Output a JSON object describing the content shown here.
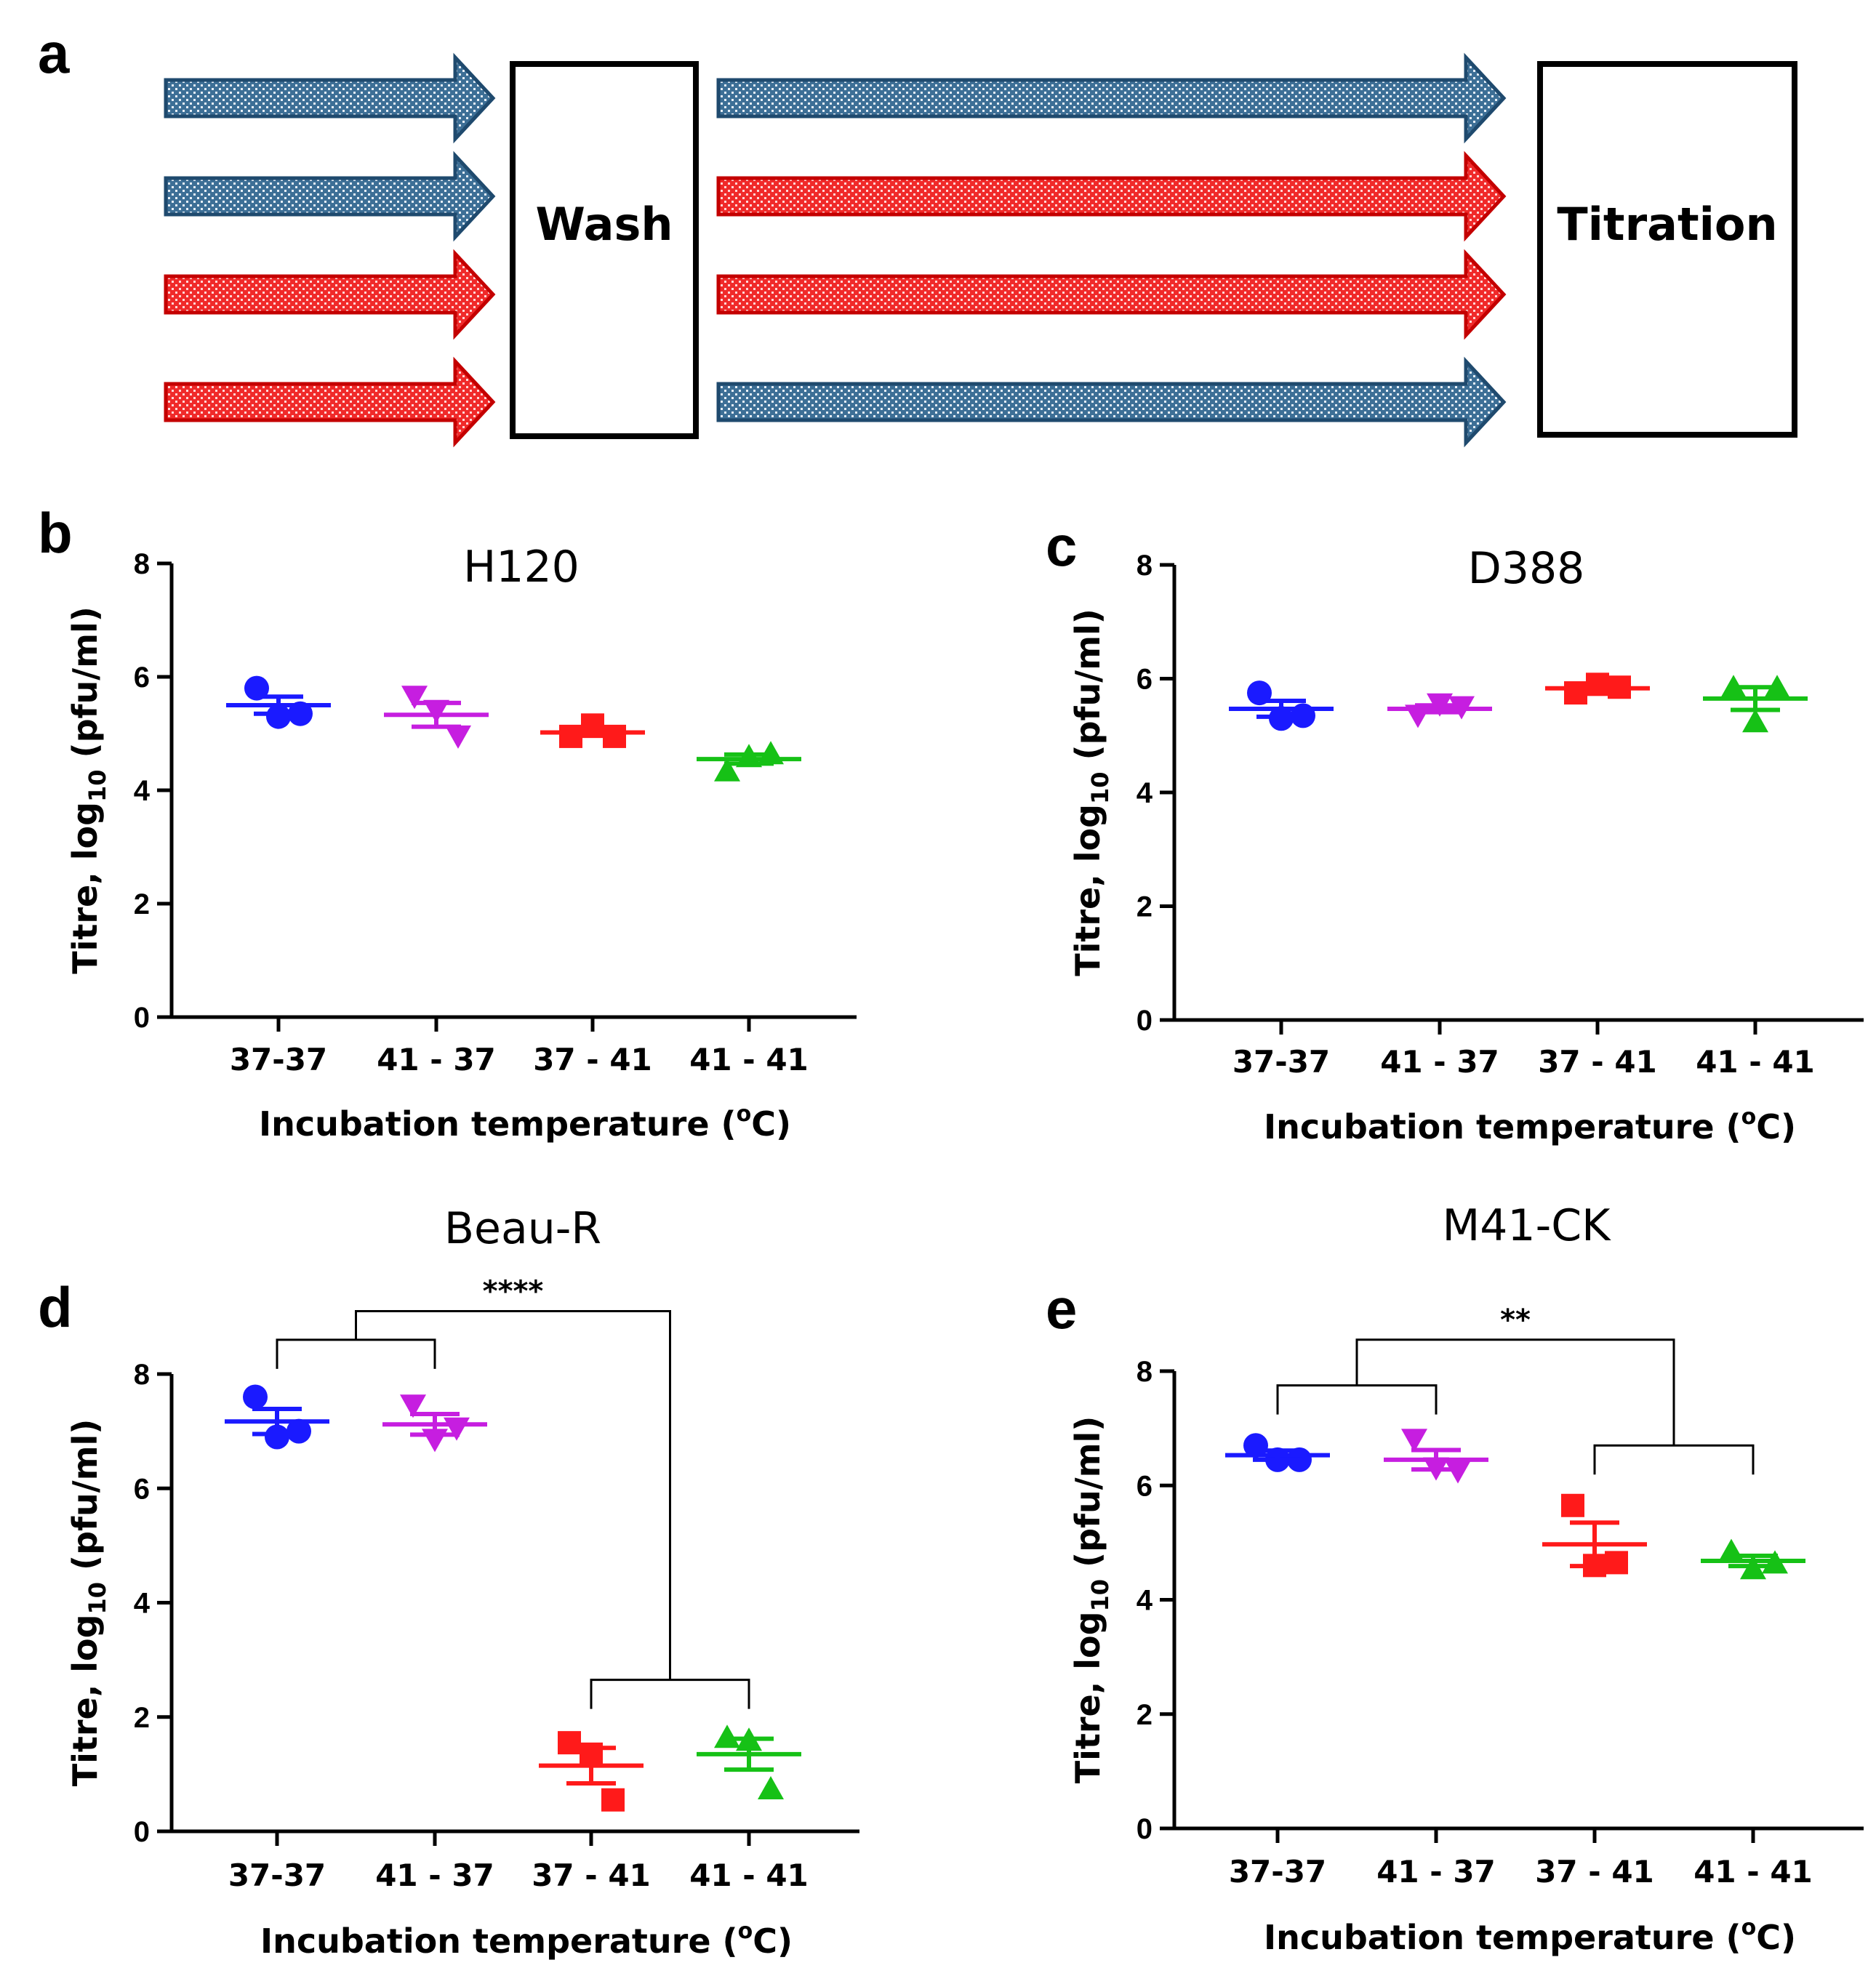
{
  "panel_a": {
    "letter": "a",
    "wash_label": "Wash",
    "titration_label": "Titration",
    "rows": [
      {
        "before": "blue",
        "after": "blue"
      },
      {
        "before": "blue",
        "after": "red"
      },
      {
        "before": "red",
        "after": "red"
      },
      {
        "before": "red",
        "after": "blue"
      }
    ],
    "colors": {
      "blue": "#3d6f96",
      "blue_edge": "#1f4a6e",
      "red": "#f02a2a",
      "red_edge": "#c40000"
    }
  },
  "shared": {
    "xlabel_prefix": "Incubation temperature (",
    "xlabel_degree": "o",
    "xlabel_suffix": "C)",
    "ylabel_prefix": "Titre, log",
    "ylabel_sub": "10",
    "ylabel_suffix": " (pfu/ml)",
    "series_colors": [
      "#1a1aff",
      "#c61ee0",
      "#ff1a1a",
      "#16c116"
    ],
    "markers": [
      "circle",
      "triangle-down",
      "square",
      "triangle-up"
    ]
  },
  "chart_data": [
    {
      "letter": "b",
      "type": "scatter",
      "title": "H120",
      "categories": [
        "37-37",
        "41 - 37",
        "37 - 41",
        "41 - 41"
      ],
      "ylim": [
        0,
        8
      ],
      "yticks": [
        "0",
        "2",
        "4",
        "6",
        "8"
      ],
      "xlabel": "Incubation temperature (°C)",
      "ylabel": "Titre, log10 (pfu/ml)",
      "series": [
        {
          "name": "37-37",
          "points": [
            5.8,
            5.3,
            5.35
          ],
          "mean": 5.5,
          "sem": 0.15
        },
        {
          "name": "41 - 37",
          "points": [
            5.65,
            5.4,
            4.95
          ],
          "mean": 5.33,
          "sem": 0.21
        },
        {
          "name": "37 - 41",
          "points": [
            4.95,
            5.15,
            4.95
          ],
          "mean": 5.02,
          "sem": 0.06
        },
        {
          "name": "41 - 41",
          "points": [
            4.35,
            4.6,
            4.65
          ],
          "mean": 4.55,
          "sem": 0.08
        }
      ],
      "significance": []
    },
    {
      "letter": "c",
      "type": "scatter",
      "title": "D388",
      "categories": [
        "37-37",
        "41 - 37",
        "37 - 41",
        "41 - 41"
      ],
      "ylim": [
        0,
        8
      ],
      "yticks": [
        "0",
        "2",
        "4",
        "6",
        "8"
      ],
      "xlabel": "Incubation temperature (°C)",
      "ylabel": "Titre, log10 (pfu/ml)",
      "series": [
        {
          "name": "37-37",
          "points": [
            5.75,
            5.3,
            5.35
          ],
          "mean": 5.47,
          "sem": 0.14
        },
        {
          "name": "41 - 37",
          "points": [
            5.35,
            5.55,
            5.5
          ],
          "mean": 5.47,
          "sem": 0.06
        },
        {
          "name": "37 - 41",
          "points": [
            5.75,
            5.9,
            5.85
          ],
          "mean": 5.83,
          "sem": 0.05
        },
        {
          "name": "41 - 41",
          "points": [
            5.85,
            5.25,
            5.85
          ],
          "mean": 5.65,
          "sem": 0.2
        }
      ],
      "significance": []
    },
    {
      "letter": "d",
      "type": "scatter",
      "title": "Beau-R",
      "categories": [
        "37-37",
        "41 - 37",
        "37 - 41",
        "41 - 41"
      ],
      "ylim": [
        0,
        8
      ],
      "yticks": [
        "0",
        "2",
        "4",
        "6",
        "8"
      ],
      "xlabel": "Incubation temperature (°C)",
      "ylabel": "Titre, log10 (pfu/ml)",
      "series": [
        {
          "name": "37-37",
          "points": [
            7.6,
            6.9,
            7.0
          ],
          "mean": 7.17,
          "sem": 0.22
        },
        {
          "name": "41 - 37",
          "points": [
            7.45,
            6.85,
            7.05
          ],
          "mean": 7.12,
          "sem": 0.18
        },
        {
          "name": "37 - 41",
          "points": [
            1.55,
            1.35,
            0.55
          ],
          "mean": 1.15,
          "sem": 0.31
        },
        {
          "name": "41 - 41",
          "points": [
            1.65,
            1.6,
            0.75
          ],
          "mean": 1.35,
          "sem": 0.27
        }
      ],
      "significance": [
        {
          "label": "****",
          "left_pair": [
            0,
            1
          ],
          "right_pair": [
            2,
            3
          ],
          "pair_y": 8.6,
          "right_pair_y": 2.65,
          "top_y": 9.1
        }
      ]
    },
    {
      "letter": "e",
      "type": "scatter",
      "title": "M41-CK",
      "categories": [
        "37-37",
        "41 - 37",
        "37 - 41",
        "41 - 41"
      ],
      "ylim": [
        0,
        8
      ],
      "yticks": [
        "0",
        "2",
        "4",
        "6",
        "8"
      ],
      "xlabel": "Incubation temperature (°C)",
      "ylabel": "Titre, log10 (pfu/ml)",
      "series": [
        {
          "name": "37-37",
          "points": [
            6.7,
            6.45,
            6.45
          ],
          "mean": 6.53,
          "sem": 0.08
        },
        {
          "name": "41 - 37",
          "points": [
            6.8,
            6.3,
            6.25
          ],
          "mean": 6.45,
          "sem": 0.17
        },
        {
          "name": "37 - 41",
          "points": [
            5.65,
            4.6,
            4.65
          ],
          "mean": 4.97,
          "sem": 0.38
        },
        {
          "name": "41 - 41",
          "points": [
            4.85,
            4.55,
            4.65
          ],
          "mean": 4.68,
          "sem": 0.09
        }
      ],
      "significance": [
        {
          "label": "**",
          "left_pair": [
            0,
            1
          ],
          "right_pair": [
            2,
            3
          ],
          "pair_y": 7.75,
          "right_pair_y": 6.7,
          "top_y": 8.55
        }
      ]
    }
  ]
}
